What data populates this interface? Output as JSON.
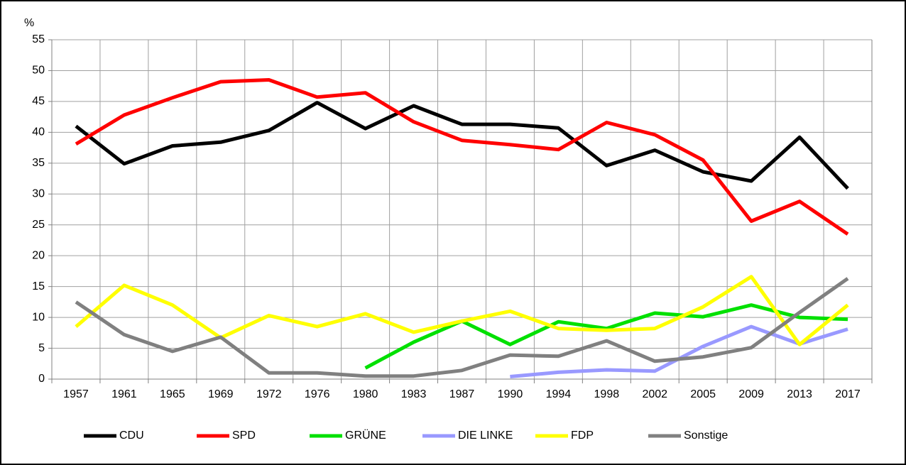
{
  "chart_data": {
    "type": "line",
    "y_label": "%",
    "categories": [
      "1957",
      "1961",
      "1965",
      "1969",
      "1972",
      "1976",
      "1980",
      "1983",
      "1987",
      "1990",
      "1994",
      "1998",
      "2002",
      "2005",
      "2009",
      "2013",
      "2017"
    ],
    "series": [
      {
        "name": "CDU",
        "color": "#000000",
        "values": [
          41.0,
          34.9,
          37.8,
          38.4,
          40.3,
          44.8,
          40.6,
          44.3,
          41.3,
          41.3,
          40.7,
          34.6,
          37.1,
          33.6,
          32.1,
          39.2,
          30.9
        ]
      },
      {
        "name": "SPD",
        "color": "#ff0000",
        "values": [
          38.1,
          42.8,
          45.6,
          48.2,
          48.5,
          45.7,
          46.4,
          41.7,
          38.7,
          38.0,
          37.2,
          41.6,
          39.6,
          35.5,
          25.6,
          28.8,
          23.5
        ]
      },
      {
        "name": "GRÜNE",
        "color": "#00e000",
        "values": [
          null,
          null,
          null,
          null,
          null,
          null,
          1.8,
          6.0,
          9.4,
          5.6,
          9.3,
          8.2,
          10.7,
          10.1,
          12.0,
          10.0,
          9.7
        ]
      },
      {
        "name": "DIE LINKE",
        "color": "#9999ff",
        "values": [
          null,
          null,
          null,
          null,
          null,
          null,
          null,
          null,
          null,
          0.4,
          1.1,
          1.5,
          1.3,
          5.3,
          8.5,
          5.7,
          8.1
        ]
      },
      {
        "name": "FDP",
        "color": "#ffff00",
        "values": [
          8.5,
          15.2,
          12.0,
          6.7,
          10.3,
          8.5,
          10.6,
          7.6,
          9.4,
          11.0,
          8.2,
          7.9,
          8.2,
          11.7,
          16.6,
          5.6,
          12.0
        ]
      },
      {
        "name": "Sonstige",
        "color": "#808080",
        "values": [
          12.5,
          7.2,
          4.5,
          6.8,
          1.0,
          1.0,
          0.5,
          0.5,
          1.4,
          3.9,
          3.7,
          6.2,
          2.9,
          3.6,
          5.1,
          10.8,
          16.3
        ]
      }
    ],
    "ylim": [
      0,
      55
    ],
    "yticks": [
      0,
      5,
      10,
      15,
      20,
      25,
      30,
      35,
      40,
      45,
      50,
      55
    ],
    "grid": true,
    "legend": "bottom"
  }
}
